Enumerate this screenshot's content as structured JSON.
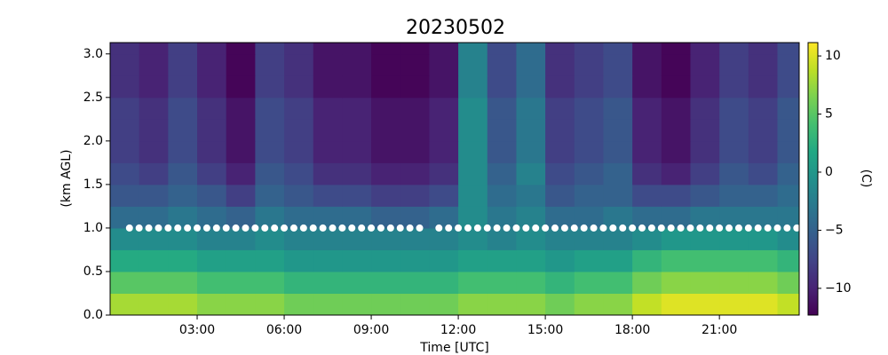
{
  "chart_data": {
    "type": "heatmap",
    "title": "20230502",
    "xlabel": "Time [UTC]",
    "ylabel": "(km AGL)",
    "colorbar_label": "(C)",
    "colormap": "viridis",
    "xlim": [
      0,
      23.75
    ],
    "ylim": [
      0,
      3.13
    ],
    "xticks": [
      {
        "value": 3,
        "label": "03:00"
      },
      {
        "value": 6,
        "label": "06:00"
      },
      {
        "value": 9,
        "label": "09:00"
      },
      {
        "value": 12,
        "label": "12:00"
      },
      {
        "value": 15,
        "label": "15:00"
      },
      {
        "value": 18,
        "label": "18:00"
      },
      {
        "value": 21,
        "label": "21:00"
      }
    ],
    "yticks": [
      {
        "value": 0,
        "label": "0.0"
      },
      0.5,
      {
        "value": 1,
        "label": "1.0"
      },
      1.5,
      {
        "value": 2,
        "label": "2.0"
      },
      2.5,
      {
        "value": 3,
        "label": "3.0"
      }
    ],
    "clim": [
      -12.3,
      11.15
    ],
    "cticks": [
      {
        "value": -10,
        "label": "−10"
      },
      {
        "value": -5,
        "label": "−5"
      },
      0,
      5,
      10
    ],
    "x_edges": [
      0,
      1,
      2,
      3,
      4,
      5,
      6,
      7,
      8,
      9,
      10,
      11,
      12,
      13,
      14,
      15,
      16,
      17,
      18,
      19,
      20,
      21,
      22,
      23,
      23.75
    ],
    "y_edges": [
      0,
      0.25,
      0.5,
      0.75,
      1,
      1.25,
      1.5,
      1.75,
      2,
      2.25,
      2.5,
      2.75,
      3,
      3.13
    ],
    "z": [
      [
        8,
        8,
        8,
        7,
        7,
        7,
        6,
        6,
        6,
        6,
        6,
        6,
        7,
        7,
        7,
        6,
        7,
        7,
        9,
        10,
        10,
        10,
        10,
        9
      ],
      [
        5,
        5,
        5,
        4,
        4,
        4,
        3,
        3,
        3,
        3,
        3,
        3,
        4,
        4,
        4,
        3,
        4,
        4,
        6,
        7,
        7,
        7,
        7,
        6
      ],
      [
        2,
        2,
        2,
        1,
        1,
        1,
        0,
        0,
        0,
        0,
        0,
        0,
        1,
        1,
        1,
        0,
        1,
        1,
        3,
        4,
        4,
        4,
        4,
        3
      ],
      [
        -1,
        -1,
        -1,
        -2,
        -2,
        -1,
        -2,
        -2,
        -2,
        -2,
        -2,
        -2,
        -1,
        -2,
        -1,
        -2,
        -2,
        -2,
        -1,
        0,
        0,
        0,
        0,
        -1
      ],
      [
        -4,
        -4,
        -3,
        -4,
        -5,
        -3,
        -4,
        -4,
        -4,
        -5,
        -5,
        -4,
        -1,
        -3,
        -2,
        -4,
        -4,
        -3,
        -4,
        -4,
        -3,
        -3,
        -3,
        -3
      ],
      [
        -6,
        -6,
        -5,
        -6,
        -8,
        -5,
        -6,
        -7,
        -7,
        -8,
        -8,
        -7,
        -1,
        -4,
        -3,
        -6,
        -5,
        -5,
        -7,
        -7,
        -6,
        -5,
        -5,
        -4
      ],
      [
        -7,
        -8,
        -6,
        -8,
        -10,
        -6,
        -7,
        -9,
        -9,
        -10,
        -10,
        -9,
        -1,
        -5,
        -2,
        -7,
        -6,
        -5,
        -9,
        -10,
        -8,
        -6,
        -7,
        -5
      ],
      [
        -8,
        -9,
        -7,
        -9,
        -11,
        -7,
        -8,
        -10,
        -10,
        -11,
        -11,
        -10,
        -1,
        -6,
        -3,
        -8,
        -7,
        -6,
        -10,
        -11,
        -9,
        -7,
        -8,
        -6
      ],
      [
        -8,
        -9,
        -7,
        -9,
        -11,
        -7,
        -8,
        -10,
        -10,
        -11,
        -11,
        -10,
        -1,
        -6,
        -3,
        -8,
        -7,
        -6,
        -10,
        -11,
        -9,
        -7,
        -8,
        -6
      ],
      [
        -8,
        -9,
        -7,
        -9,
        -11,
        -7,
        -8,
        -10,
        -10,
        -11,
        -11,
        -10,
        -1,
        -6,
        -3,
        -8,
        -7,
        -6,
        -10,
        -11,
        -9,
        -7,
        -8,
        -6
      ],
      [
        -9,
        -10,
        -8,
        -10,
        -12,
        -8,
        -9,
        -11,
        -11,
        -12,
        -12,
        -11,
        -2,
        -7,
        -4,
        -9,
        -8,
        -7,
        -11,
        -12,
        -10,
        -8,
        -9,
        -7
      ],
      [
        -9,
        -10,
        -8,
        -10,
        -12,
        -8,
        -9,
        -11,
        -11,
        -12,
        -12,
        -11,
        -2,
        -7,
        -4,
        -9,
        -8,
        -7,
        -11,
        -12,
        -10,
        -8,
        -9,
        -7
      ],
      [
        -9,
        -10,
        -8,
        -10,
        -12,
        -8,
        -9,
        -11,
        -11,
        -12,
        -12,
        -11,
        -2,
        -7,
        -4,
        -9,
        -8,
        -7,
        -11,
        -12,
        -10,
        -8,
        -9,
        -7
      ]
    ],
    "markers": {
      "color": "#ffffff",
      "x": [
        0.667,
        1,
        1.333,
        1.667,
        2,
        2.333,
        2.667,
        3,
        3.333,
        3.667,
        4,
        4.333,
        4.667,
        5,
        5.333,
        5.667,
        6,
        6.333,
        6.667,
        7,
        7.333,
        7.667,
        8,
        8.333,
        8.667,
        9,
        9.333,
        9.667,
        10,
        10.333,
        10.667,
        11.333,
        11.667,
        12,
        12.333,
        12.667,
        13,
        13.333,
        13.667,
        14,
        14.333,
        14.667,
        15,
        15.333,
        15.667,
        16,
        16.333,
        16.667,
        17,
        17.333,
        17.667,
        18,
        18.333,
        18.667,
        19,
        19.333,
        19.667,
        20,
        20.333,
        20.667,
        21,
        21.333,
        21.667,
        22,
        22.333,
        22.667,
        23,
        23.333,
        23.667
      ],
      "y": [
        1,
        1,
        1,
        1,
        1,
        1,
        1,
        1,
        1,
        1,
        1,
        1,
        1,
        1,
        1,
        1,
        1,
        1,
        1,
        1,
        1,
        1,
        1,
        1,
        1,
        1,
        1,
        1,
        1,
        1,
        1,
        1,
        1,
        1,
        1,
        1,
        1,
        1,
        1,
        1,
        1,
        1,
        1,
        1,
        1,
        1,
        1,
        1,
        1,
        1,
        1,
        1,
        1,
        1,
        1,
        1,
        1,
        1,
        1,
        1,
        1,
        1,
        1,
        1,
        1,
        1,
        1,
        1,
        1
      ]
    }
  }
}
